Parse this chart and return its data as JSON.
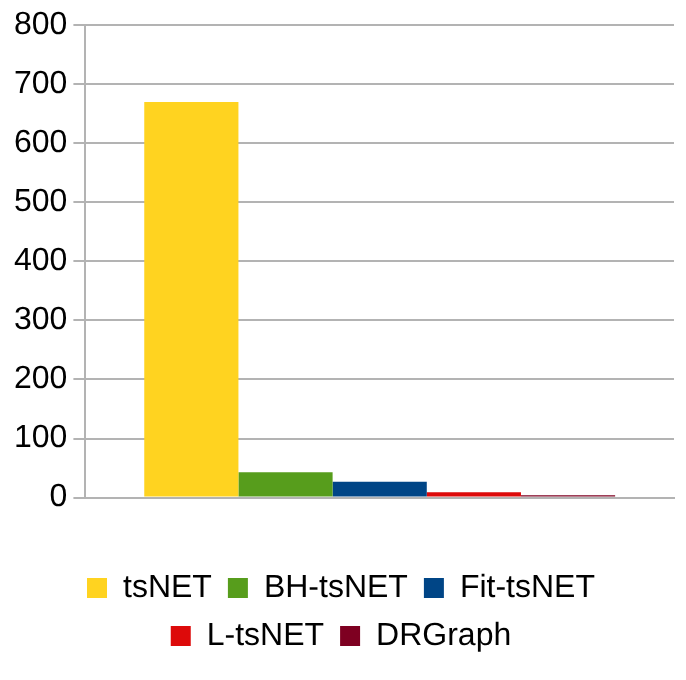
{
  "chart_data": {
    "type": "bar",
    "categories": [
      null
    ],
    "series": [
      {
        "name": "tsNET",
        "color": "#ffd320",
        "values": [
          670
        ]
      },
      {
        "name": "BH-tsNET",
        "color": "#579d1c",
        "values": [
          43
        ]
      },
      {
        "name": "Fit-tsNET",
        "color": "#004586",
        "values": [
          27
        ]
      },
      {
        "name": "L-tsNET",
        "color": "#dd0a0a",
        "values": [
          9
        ]
      },
      {
        "name": "DRGraph",
        "color": "#7e0021",
        "values": [
          4
        ]
      }
    ],
    "ylim": [
      0,
      800
    ],
    "yticks": [
      0,
      100,
      200,
      300,
      400,
      500,
      600,
      700,
      800
    ],
    "grid": "y",
    "legend": "bottom"
  }
}
